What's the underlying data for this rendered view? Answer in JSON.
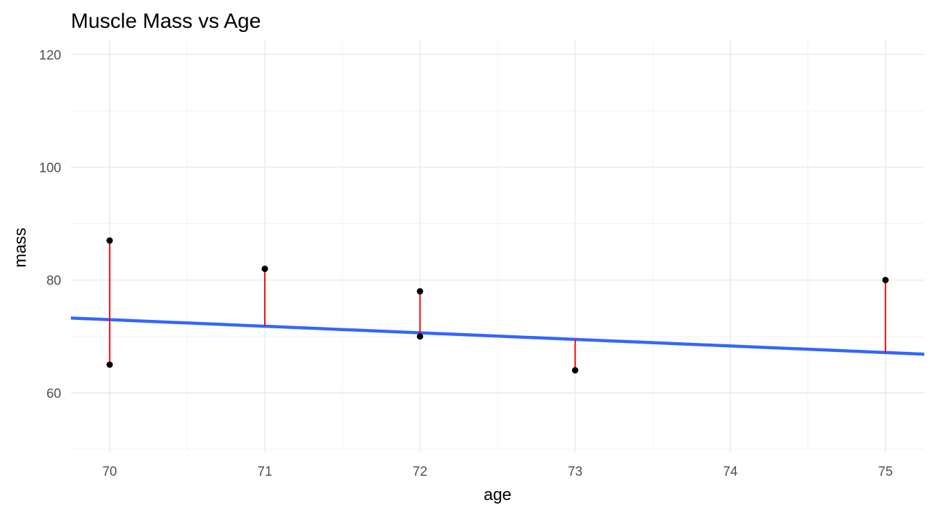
{
  "chart_data": {
    "type": "scatter",
    "title": "Muscle Mass vs Age",
    "xlabel": "age",
    "ylabel": "mass",
    "xlim": [
      69.75,
      75.25
    ],
    "ylim": [
      49.5,
      122.5
    ],
    "x_ticks": [
      70,
      71,
      72,
      73,
      74,
      75
    ],
    "x_tick_labels": [
      "70",
      "71",
      "72",
      "73",
      "74",
      "75"
    ],
    "y_ticks": [
      60,
      80,
      100,
      120
    ],
    "y_tick_labels": [
      "60",
      "80",
      "100",
      "120"
    ],
    "grid": true,
    "points": [
      {
        "x": 70,
        "y": 87
      },
      {
        "x": 70,
        "y": 65
      },
      {
        "x": 71,
        "y": 82
      },
      {
        "x": 72,
        "y": 78
      },
      {
        "x": 72,
        "y": 70
      },
      {
        "x": 73,
        "y": 64
      },
      {
        "x": 75,
        "y": 80
      }
    ],
    "fit_line": {
      "intercept": 154.6,
      "slope": -1.166
    },
    "colors": {
      "points": "#000000",
      "fit_line": "#3366ff",
      "residuals": "#ff0000"
    }
  }
}
